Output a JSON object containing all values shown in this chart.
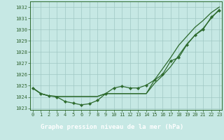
{
  "title": "Graphe pression niveau de la mer (hPa)",
  "x": [
    0,
    1,
    2,
    3,
    4,
    5,
    6,
    7,
    8,
    9,
    10,
    11,
    12,
    13,
    14,
    15,
    16,
    17,
    18,
    19,
    20,
    21,
    22,
    23
  ],
  "series": [
    {
      "y": [
        1024.8,
        1024.3,
        1024.1,
        1024.0,
        1023.6,
        1023.45,
        1023.3,
        1023.4,
        1023.7,
        1024.3,
        1024.8,
        1024.95,
        1024.8,
        1024.8,
        1025.05,
        1025.5,
        1026.0,
        1027.2,
        1027.5,
        1028.65,
        1029.5,
        1030.0,
        1031.1,
        1031.7
      ],
      "marker": true
    },
    {
      "y": [
        1024.8,
        1024.3,
        1024.1,
        1024.05,
        1024.05,
        1024.05,
        1024.05,
        1024.05,
        1024.05,
        1024.3,
        1024.3,
        1024.3,
        1024.3,
        1024.3,
        1024.3,
        1025.5,
        1026.5,
        1027.5,
        1028.6,
        1029.4,
        1030.2,
        1030.8,
        1031.5,
        1032.0
      ],
      "marker": false
    },
    {
      "y": [
        1024.8,
        1024.3,
        1024.1,
        1024.05,
        1024.05,
        1024.05,
        1024.05,
        1024.05,
        1024.05,
        1024.3,
        1024.3,
        1024.3,
        1024.3,
        1024.3,
        1024.3,
        1025.2,
        1025.9,
        1026.7,
        1027.7,
        1028.7,
        1029.5,
        1030.1,
        1031.0,
        1031.8
      ],
      "marker": false
    }
  ],
  "line_color": "#2d6a2d",
  "markersize": 2.2,
  "linewidth": 0.9,
  "ylim": [
    1022.85,
    1032.5
  ],
  "yticks": [
    1023,
    1024,
    1025,
    1026,
    1027,
    1028,
    1029,
    1030,
    1031,
    1032
  ],
  "xlim": [
    -0.3,
    23.3
  ],
  "bg_color": "#c6e8e4",
  "grid_color": "#a0c8c4",
  "title_bg": "#336633",
  "tick_label_color": "#336633",
  "tick_fontsize": 5.0,
  "title_fontsize": 6.5
}
